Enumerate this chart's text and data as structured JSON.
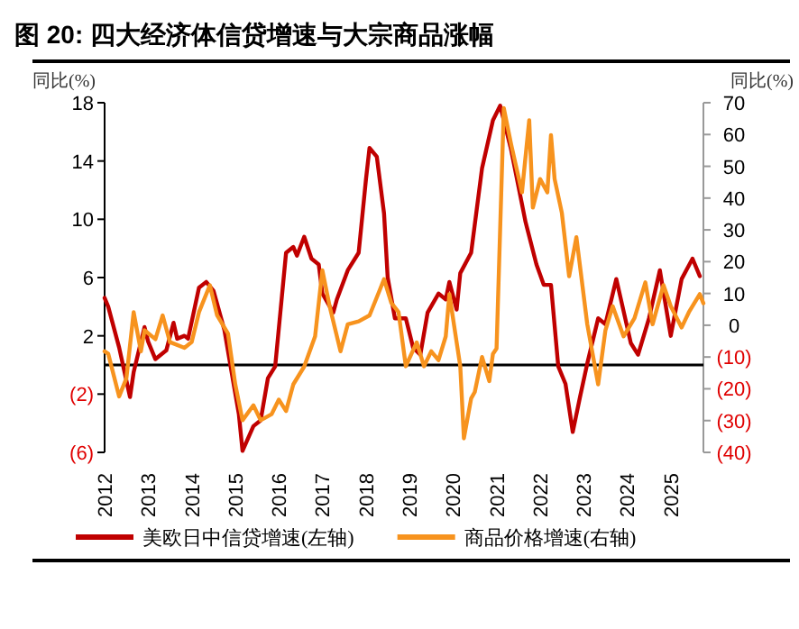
{
  "chart_data": {
    "type": "line",
    "title": "图 20: 四大经济体信贷增速与大宗商品涨幅",
    "ylabel": "同比(%)",
    "y2label": "同比(%)",
    "xlim": [
      "2012-01",
      "2025-10"
    ],
    "xticks": [
      {
        "value": "2012-01",
        "label": "2012"
      },
      {
        "value": "2013-01",
        "label": "2013"
      },
      {
        "value": "2014-01",
        "label": "2014"
      },
      {
        "value": "2015-01",
        "label": "2015"
      },
      {
        "value": "2016-01",
        "label": "2016"
      },
      {
        "value": "2017-01",
        "label": "2017"
      },
      {
        "value": "2018-01",
        "label": "2018"
      },
      {
        "value": "2019-01",
        "label": "2019"
      },
      {
        "value": "2020-01",
        "label": "2020"
      },
      {
        "value": "2021-01",
        "label": "2021"
      },
      {
        "value": "2022-01",
        "label": "2022"
      },
      {
        "value": "2023-01",
        "label": "2023"
      },
      {
        "value": "2024-01",
        "label": "2024"
      },
      {
        "value": "2025-01",
        "label": "2025"
      }
    ],
    "ylim": [
      -6,
      18
    ],
    "yticks": [
      18,
      14,
      10,
      6,
      2,
      {
        "value": -2,
        "label": "(2)"
      },
      {
        "value": -6,
        "label": "(6)"
      }
    ],
    "y2lim": [
      -40,
      70
    ],
    "y2ticks": [
      70,
      60,
      50,
      40,
      30,
      20,
      10,
      0,
      {
        "value": -10,
        "label": "(10)"
      },
      {
        "value": -20,
        "label": "(20)"
      },
      {
        "value": -30,
        "label": "(30)"
      },
      {
        "value": -40,
        "label": "(40)"
      }
    ],
    "ref_lines": [
      {
        "axis": "y",
        "value": 0,
        "color": "#000000"
      }
    ],
    "legend": "bottom",
    "grid": false,
    "marker": "none",
    "line_style": "solid",
    "series": [
      {
        "name": "美欧日中信贷增速(左轴)",
        "color": "#c00000",
        "x": [
          "2012-01",
          "2012-02",
          "2012-05",
          "2012-08",
          "2012-09",
          "2012-12",
          "2013-01",
          "2013-03",
          "2013-06",
          "2013-08",
          "2013-09",
          "2013-11",
          "2013-12",
          "2014-03",
          "2014-05",
          "2014-07",
          "2014-10",
          "2014-12",
          "2015-02",
          "2015-03",
          "2015-06",
          "2015-08",
          "2015-10",
          "2015-12",
          "2016-03",
          "2016-05",
          "2016-06",
          "2016-08",
          "2016-10",
          "2016-12",
          "2017-01",
          "2017-04",
          "2017-05",
          "2017-08",
          "2017-11",
          "2018-01",
          "2018-02",
          "2018-04",
          "2018-06",
          "2018-07",
          "2018-09",
          "2018-12",
          "2019-02",
          "2019-04",
          "2019-06",
          "2019-09",
          "2019-11",
          "2019-12",
          "2020-02",
          "2020-03",
          "2020-06",
          "2020-09",
          "2020-12",
          "2021-02",
          "2021-03",
          "2021-05",
          "2021-09",
          "2021-12",
          "2022-02",
          "2022-04",
          "2022-06",
          "2022-08",
          "2022-10",
          "2022-12",
          "2023-02",
          "2023-05",
          "2023-07",
          "2023-10",
          "2024-02",
          "2024-04",
          "2024-07",
          "2024-10",
          "2025-01",
          "2025-04",
          "2025-07",
          "2025-09"
        ],
        "values": [
          4.6,
          4.0,
          1.2,
          -2.2,
          -0.5,
          2.6,
          1.6,
          0.4,
          1.0,
          2.9,
          1.8,
          2.0,
          1.8,
          5.3,
          5.7,
          5.1,
          2.4,
          -0.5,
          -3.4,
          -5.9,
          -4.2,
          -3.8,
          -0.9,
          -0.1,
          7.7,
          8.1,
          7.5,
          8.8,
          7.3,
          6.9,
          4.9,
          3.6,
          4.5,
          6.5,
          7.7,
          12.7,
          14.9,
          14.3,
          10.4,
          6.0,
          3.2,
          3.2,
          1.2,
          0.7,
          3.6,
          4.9,
          4.5,
          5.7,
          3.8,
          6.3,
          7.7,
          13.5,
          16.8,
          17.8,
          16.8,
          14.8,
          9.8,
          6.9,
          5.5,
          5.5,
          -0.1,
          -1.3,
          -4.6,
          -2.2,
          0.1,
          3.2,
          2.8,
          5.9,
          1.5,
          0.7,
          3.2,
          6.5,
          2.0,
          5.9,
          7.3,
          6.1
        ]
      },
      {
        "name": "商品价格增速(右轴)",
        "color": "#f7931e",
        "axis": "y2",
        "x": [
          "2012-01",
          "2012-02",
          "2012-05",
          "2012-07",
          "2012-09",
          "2012-11",
          "2012-12",
          "2013-03",
          "2013-05",
          "2013-07",
          "2013-11",
          "2014-01",
          "2014-03",
          "2014-06",
          "2014-08",
          "2014-11",
          "2015-01",
          "2015-03",
          "2015-06",
          "2015-08",
          "2015-11",
          "2016-01",
          "2016-03",
          "2016-05",
          "2016-08",
          "2016-11",
          "2017-01",
          "2017-03",
          "2017-06",
          "2017-08",
          "2017-11",
          "2018-02",
          "2018-05",
          "2018-06",
          "2018-08",
          "2018-10",
          "2018-12",
          "2019-03",
          "2019-05",
          "2019-07",
          "2019-09",
          "2019-11",
          "2019-12",
          "2020-03",
          "2020-04",
          "2020-06",
          "2020-07",
          "2020-09",
          "2020-11",
          "2020-12",
          "2021-01",
          "2021-03",
          "2021-05",
          "2021-08",
          "2021-10",
          "2021-11",
          "2022-01",
          "2022-03",
          "2022-04",
          "2022-05",
          "2022-07",
          "2022-09",
          "2022-11",
          "2023-02",
          "2023-05",
          "2023-07",
          "2023-09",
          "2023-12",
          "2024-03",
          "2024-06",
          "2024-08",
          "2024-11",
          "2025-01",
          "2025-04",
          "2025-06",
          "2025-09",
          "2025-10"
        ],
        "values": [
          -8.2,
          -9,
          -22.4,
          -16.7,
          4.1,
          -8.2,
          -1.6,
          -4.4,
          3.1,
          -5.3,
          -7.1,
          -5.3,
          4.1,
          12.6,
          3.1,
          -2.6,
          -18.6,
          -29.9,
          -25.2,
          -29.9,
          -28,
          -23.4,
          -27,
          -18.6,
          -13,
          -3.5,
          17.3,
          6,
          -8.2,
          0.3,
          1.2,
          3.1,
          11.6,
          14.5,
          7,
          4.1,
          -12.9,
          -5.4,
          -12.9,
          -8.2,
          -11,
          -3.5,
          9.8,
          -12.9,
          -35.6,
          -23,
          -21,
          -10,
          -17.6,
          -9,
          -7.3,
          68.3,
          57,
          41.8,
          64.5,
          37,
          46,
          41.8,
          59.8,
          46,
          35.3,
          15.4,
          27.7,
          0.3,
          -18.6,
          -1.6,
          6,
          -3.5,
          2.2,
          13.5,
          0.3,
          12.6,
          6,
          -0.7,
          4.1,
          9.8,
          6.9
        ]
      }
    ]
  }
}
